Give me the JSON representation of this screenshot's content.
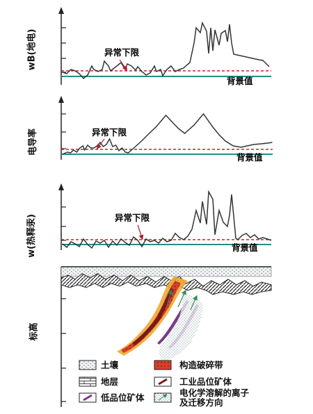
{
  "panels": [
    {
      "ylabel": "wB(地电)",
      "threshold_label": "异常下限",
      "background_label": "背景值",
      "profile": [
        [
          0,
          104
        ],
        [
          2,
          106
        ],
        [
          4,
          100
        ],
        [
          6,
          102
        ],
        [
          8,
          106
        ],
        [
          10,
          113
        ],
        [
          12,
          108
        ],
        [
          14,
          95
        ],
        [
          15,
          100
        ],
        [
          17,
          103
        ],
        [
          19,
          100
        ],
        [
          20,
          88
        ],
        [
          22,
          95
        ],
        [
          23,
          102
        ],
        [
          26,
          95
        ],
        [
          28,
          90
        ],
        [
          30,
          100
        ],
        [
          31,
          92
        ],
        [
          33,
          95
        ],
        [
          35,
          101
        ],
        [
          36,
          96
        ],
        [
          38,
          103
        ],
        [
          40,
          108
        ],
        [
          42,
          105
        ],
        [
          44,
          95
        ],
        [
          45,
          103
        ],
        [
          47,
          100
        ],
        [
          48,
          109
        ],
        [
          50,
          100
        ],
        [
          52,
          95
        ],
        [
          54,
          103
        ],
        [
          56,
          100
        ],
        [
          58,
          98
        ],
        [
          59,
          95
        ],
        [
          61,
          90
        ],
        [
          63,
          62
        ],
        [
          64,
          40
        ],
        [
          66,
          47
        ],
        [
          67,
          33
        ],
        [
          69,
          45
        ],
        [
          70,
          77
        ],
        [
          71,
          40
        ],
        [
          72,
          73
        ],
        [
          73,
          43
        ],
        [
          75,
          65
        ],
        [
          76,
          48
        ],
        [
          78,
          44
        ],
        [
          79,
          60
        ],
        [
          80,
          35
        ],
        [
          81,
          62
        ],
        [
          82,
          78
        ],
        [
          85,
          80
        ],
        [
          88,
          82
        ],
        [
          91,
          84
        ],
        [
          94,
          86
        ],
        [
          96,
          87
        ],
        [
          99,
          96
        ]
      ]
    },
    {
      "ylabel": "电导率",
      "threshold_label": "异常下限",
      "background_label": "背景值",
      "profile": [
        [
          0,
          222
        ],
        [
          3,
          219
        ],
        [
          5,
          220
        ],
        [
          7,
          216
        ],
        [
          9,
          219
        ],
        [
          11,
          213
        ],
        [
          13,
          210
        ],
        [
          14,
          216
        ],
        [
          16,
          209
        ],
        [
          18,
          213
        ],
        [
          20,
          213
        ],
        [
          22,
          210
        ],
        [
          24,
          205
        ],
        [
          26,
          211
        ],
        [
          28,
          208
        ],
        [
          30,
          200
        ],
        [
          32,
          211
        ],
        [
          34,
          209
        ],
        [
          36,
          217
        ],
        [
          38,
          213
        ],
        [
          40,
          219
        ],
        [
          42,
          220
        ],
        [
          44,
          216
        ],
        [
          46,
          212
        ],
        [
          50,
          204
        ],
        [
          54,
          195
        ],
        [
          60,
          182
        ],
        [
          66,
          166
        ],
        [
          71,
          178
        ],
        [
          74,
          185
        ],
        [
          78,
          192
        ],
        [
          84,
          180
        ],
        [
          90,
          164
        ],
        [
          96,
          183
        ],
        [
          100,
          194
        ],
        [
          104,
          203
        ],
        [
          109,
          210
        ],
        [
          114,
          212
        ],
        [
          118,
          210
        ],
        [
          122,
          208
        ],
        [
          127,
          207
        ],
        [
          131,
          206
        ],
        [
          134,
          205
        ]
      ]
    },
    {
      "ylabel": "w(热释汞)",
      "threshold_label": "异常下限",
      "background_label": "背景值",
      "profile": [
        [
          0,
          351
        ],
        [
          2,
          356
        ],
        [
          4,
          348
        ],
        [
          6,
          351
        ],
        [
          8,
          355
        ],
        [
          10,
          344
        ],
        [
          12,
          352
        ],
        [
          14,
          357
        ],
        [
          16,
          347
        ],
        [
          18,
          350
        ],
        [
          20,
          346
        ],
        [
          22,
          356
        ],
        [
          24,
          347
        ],
        [
          26,
          353
        ],
        [
          28,
          344
        ],
        [
          30,
          349
        ],
        [
          32,
          353
        ],
        [
          34,
          341
        ],
        [
          36,
          346
        ],
        [
          38,
          355
        ],
        [
          40,
          344
        ],
        [
          42,
          348
        ],
        [
          44,
          346
        ],
        [
          46,
          350
        ],
        [
          48,
          343
        ],
        [
          50,
          348
        ],
        [
          52,
          346
        ],
        [
          54,
          336
        ],
        [
          56,
          342
        ],
        [
          58,
          345
        ],
        [
          60,
          340
        ],
        [
          62,
          330
        ],
        [
          64,
          303
        ],
        [
          66,
          321
        ],
        [
          67,
          290
        ],
        [
          69,
          323
        ],
        [
          70,
          276
        ],
        [
          72,
          287
        ],
        [
          73,
          338
        ],
        [
          75,
          303
        ],
        [
          77,
          320
        ],
        [
          79,
          326
        ],
        [
          80,
          310
        ],
        [
          81,
          280
        ],
        [
          83,
          343
        ],
        [
          84,
          345
        ],
        [
          86,
          339
        ],
        [
          88,
          336
        ],
        [
          90,
          342
        ],
        [
          92,
          338
        ],
        [
          94,
          344
        ],
        [
          96,
          342
        ],
        [
          98,
          344
        ],
        [
          100,
          346
        ]
      ]
    }
  ],
  "section": {
    "ylabel": "标高"
  },
  "legend": [
    {
      "key": "soil",
      "label": "土壤"
    },
    {
      "key": "fracture",
      "label": "构造破碎带"
    },
    {
      "key": "strata",
      "label": "地层"
    },
    {
      "key": "industrial_ore",
      "label": "工业品位矿体"
    },
    {
      "key": "low_ore",
      "label": "低品位矿体"
    },
    {
      "key": "ion_migration",
      "label_line1": "电化学溶解的离子",
      "label_line2": "及迁移方向"
    }
  ],
  "colors": {
    "threshold": "#c8202c",
    "background": "#1f8f8a",
    "profile": "#333333",
    "arrow": "#b01e2a",
    "fracture": "#d6402a",
    "ore_halo": "#f1a830",
    "low_ore": "#7a3a8a",
    "ion_dots": "#3aa35a"
  }
}
